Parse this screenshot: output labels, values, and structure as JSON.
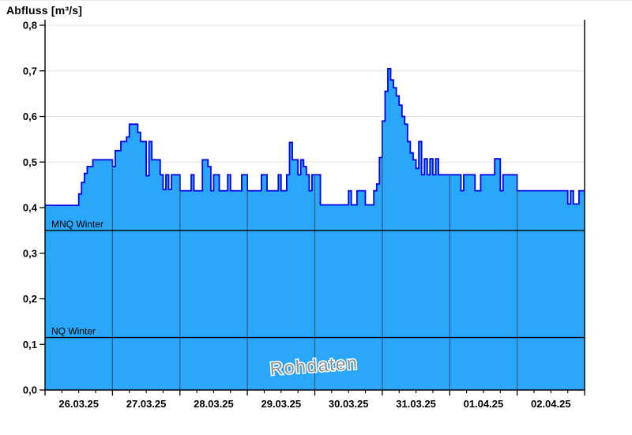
{
  "header": {
    "title": "Abfluss [m³/s]"
  },
  "chart_data": {
    "type": "area",
    "title": "Abfluss [m³/s]",
    "ylabel": "Abfluss [m³/s]",
    "watermark": "Rohdaten",
    "ylim": [
      0.0,
      0.8
    ],
    "y_tick_values": [
      0.0,
      0.1,
      0.2,
      0.3,
      0.4,
      0.5,
      0.6,
      0.7,
      0.8
    ],
    "y_tick_labels": [
      "0,0",
      "0,1",
      "0,2",
      "0,3",
      "0,4",
      "0,5",
      "0,6",
      "0,7",
      "0,8"
    ],
    "x_day_labels": [
      "26.03.25",
      "27.03.25",
      "28.03.25",
      "29.03.25",
      "30.03.25",
      "31.03.25",
      "01.04.25",
      "02.04.25"
    ],
    "minor_ticks_per_day": 4,
    "grid": "horizontal",
    "legend_position": "none",
    "reference_lines": [
      {
        "label": "MNQ Winter",
        "value": 0.35
      },
      {
        "label": "NQ Winter",
        "value": 0.115
      }
    ],
    "series": [
      {
        "name": "Abfluss",
        "unit": "m³/s",
        "step_hours": 1,
        "values": [
          0.405,
          0.405,
          0.405,
          0.405,
          0.405,
          0.405,
          0.405,
          0.405,
          0.405,
          0.405,
          0.405,
          0.405,
          0.43,
          0.455,
          0.475,
          0.49,
          0.49,
          0.505,
          0.505,
          0.505,
          0.505,
          0.505,
          0.505,
          0.505,
          0.49,
          0.525,
          0.525,
          0.545,
          0.545,
          0.555,
          0.583,
          0.583,
          0.583,
          0.565,
          0.545,
          0.545,
          0.47,
          0.545,
          0.505,
          0.505,
          0.505,
          0.472,
          0.44,
          0.472,
          0.44,
          0.472,
          0.472,
          0.472,
          0.437,
          0.437,
          0.437,
          0.437,
          0.472,
          0.437,
          0.437,
          0.437,
          0.505,
          0.505,
          0.49,
          0.437,
          0.472,
          0.472,
          0.437,
          0.437,
          0.437,
          0.472,
          0.437,
          0.437,
          0.437,
          0.437,
          0.472,
          0.472,
          0.437,
          0.437,
          0.437,
          0.437,
          0.437,
          0.472,
          0.472,
          0.437,
          0.437,
          0.437,
          0.437,
          0.472,
          0.437,
          0.437,
          0.472,
          0.543,
          0.505,
          0.505,
          0.472,
          0.505,
          0.49,
          0.472,
          0.437,
          0.472,
          0.472,
          0.472,
          0.406,
          0.406,
          0.406,
          0.406,
          0.406,
          0.406,
          0.406,
          0.406,
          0.406,
          0.406,
          0.437,
          0.406,
          0.406,
          0.437,
          0.437,
          0.437,
          0.406,
          0.406,
          0.406,
          0.437,
          0.452,
          0.51,
          0.59,
          0.655,
          0.705,
          0.68,
          0.663,
          0.645,
          0.625,
          0.6,
          0.583,
          0.545,
          0.52,
          0.505,
          0.486,
          0.545,
          0.472,
          0.507,
          0.472,
          0.507,
          0.472,
          0.507,
          0.472,
          0.472,
          0.472,
          0.472,
          0.472,
          0.472,
          0.472,
          0.472,
          0.437,
          0.472,
          0.472,
          0.472,
          0.472,
          0.437,
          0.437,
          0.472,
          0.472,
          0.472,
          0.472,
          0.472,
          0.507,
          0.507,
          0.437,
          0.472,
          0.472,
          0.472,
          0.472,
          0.472,
          0.437,
          0.437,
          0.437,
          0.437,
          0.437,
          0.437,
          0.437,
          0.437,
          0.437,
          0.437,
          0.437,
          0.437,
          0.437,
          0.437,
          0.437,
          0.437,
          0.437,
          0.437,
          0.408,
          0.437,
          0.408,
          0.408,
          0.437,
          0.437
        ]
      }
    ],
    "colors": {
      "fill": "#2aa7f8",
      "outline": "#0000f0",
      "grid": "#e4e4e4",
      "axis": "#000000",
      "day_line": "#3a5a78",
      "reference_line": "#000000",
      "watermark": "#8f8f8f",
      "watermark_halo": "#ffffff"
    }
  }
}
